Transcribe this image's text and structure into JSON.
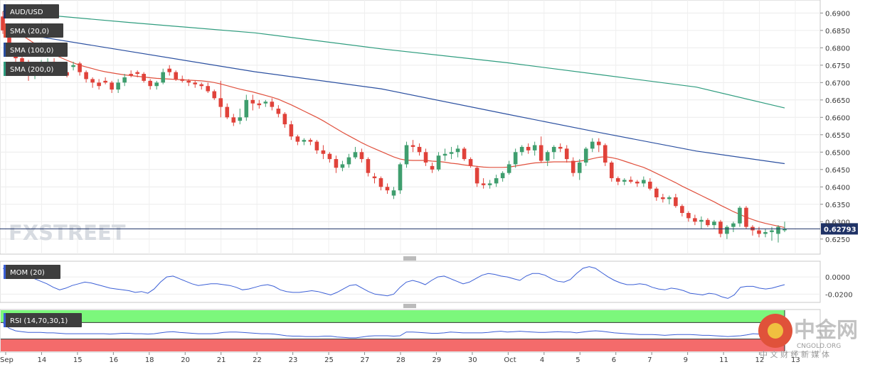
{
  "chart_data": {
    "type": "candlestick",
    "symbol": "AUD/USD",
    "colors": {
      "bull": "#3f9e6e",
      "bear": "#e0423a",
      "sma20": "#e0503d",
      "sma100": "#2a4fa0",
      "sma200": "#2e9c7e",
      "mom": "#3b5fd6",
      "rsi": "#3b5fd6",
      "overbought": "#7cf77c",
      "oversold": "#f46b6b",
      "price_line": "#1f3266"
    },
    "price_axis": {
      "ylim": [
        0.6225,
        0.6915
      ],
      "ticks": [
        "0.6900",
        "0.6850",
        "0.6800",
        "0.6750",
        "0.6700",
        "0.6650",
        "0.6600",
        "0.6550",
        "0.6500",
        "0.6450",
        "0.6400",
        "0.6350",
        "0.6300",
        "0.6250"
      ]
    },
    "last_price": "0.62793",
    "date_labels": [
      "Sep",
      "14",
      "15",
      "16",
      "18",
      "20",
      "21",
      "22",
      "23",
      "25",
      "27",
      "28",
      "29",
      "30",
      "Oct",
      "4",
      "5",
      "6",
      "7",
      "9",
      "11",
      "12",
      "13"
    ],
    "candles": [
      [
        0.689,
        0.6905,
        0.684,
        0.685
      ],
      [
        0.685,
        0.686,
        0.6785,
        0.6795
      ],
      [
        0.6795,
        0.6815,
        0.676,
        0.677
      ],
      [
        0.677,
        0.679,
        0.674,
        0.675
      ],
      [
        0.675,
        0.6765,
        0.6705,
        0.672
      ],
      [
        0.672,
        0.6745,
        0.671,
        0.6735
      ],
      [
        0.6735,
        0.6765,
        0.6725,
        0.6755
      ],
      [
        0.6755,
        0.677,
        0.6745,
        0.676
      ],
      [
        0.676,
        0.677,
        0.672,
        0.674
      ],
      [
        0.674,
        0.6745,
        0.6725,
        0.673
      ],
      [
        0.673,
        0.674,
        0.6715,
        0.672
      ],
      [
        0.6745,
        0.676,
        0.6735,
        0.675
      ],
      [
        0.6755,
        0.676,
        0.672,
        0.673
      ],
      [
        0.673,
        0.6735,
        0.67,
        0.671
      ],
      [
        0.671,
        0.6715,
        0.6685,
        0.67
      ],
      [
        0.67,
        0.671,
        0.668,
        0.669
      ],
      [
        0.6705,
        0.6715,
        0.6695,
        0.67
      ],
      [
        0.67,
        0.6705,
        0.667,
        0.668
      ],
      [
        0.668,
        0.671,
        0.667,
        0.67
      ],
      [
        0.67,
        0.6725,
        0.669,
        0.6715
      ],
      [
        0.6725,
        0.6735,
        0.6715,
        0.672
      ],
      [
        0.673,
        0.6735,
        0.6715,
        0.6725
      ],
      [
        0.6725,
        0.673,
        0.67,
        0.6705
      ],
      [
        0.6705,
        0.671,
        0.668,
        0.669
      ],
      [
        0.669,
        0.6705,
        0.668,
        0.67
      ],
      [
        0.67,
        0.674,
        0.6695,
        0.673
      ],
      [
        0.674,
        0.675,
        0.672,
        0.673
      ],
      [
        0.673,
        0.6735,
        0.6705,
        0.671
      ],
      [
        0.671,
        0.672,
        0.67,
        0.6705
      ],
      [
        0.6705,
        0.671,
        0.669,
        0.67
      ],
      [
        0.67,
        0.6705,
        0.6685,
        0.6695
      ],
      [
        0.6695,
        0.67,
        0.668,
        0.669
      ],
      [
        0.669,
        0.67,
        0.667,
        0.6675
      ],
      [
        0.6675,
        0.668,
        0.665,
        0.6655
      ],
      [
        0.6655,
        0.6705,
        0.66,
        0.663
      ],
      [
        0.663,
        0.664,
        0.6595,
        0.66
      ],
      [
        0.66,
        0.661,
        0.6575,
        0.6585
      ],
      [
        0.659,
        0.6625,
        0.658,
        0.66
      ],
      [
        0.66,
        0.6665,
        0.659,
        0.665
      ],
      [
        0.665,
        0.6665,
        0.662,
        0.664
      ],
      [
        0.664,
        0.665,
        0.6625,
        0.6635
      ],
      [
        0.664,
        0.665,
        0.663,
        0.6645
      ],
      [
        0.6645,
        0.6655,
        0.662,
        0.663
      ],
      [
        0.6625,
        0.6635,
        0.66,
        0.661
      ],
      [
        0.661,
        0.6615,
        0.657,
        0.658
      ],
      [
        0.658,
        0.659,
        0.6535,
        0.6545
      ],
      [
        0.6545,
        0.655,
        0.652,
        0.653
      ],
      [
        0.653,
        0.654,
        0.652,
        0.6535
      ],
      [
        0.6535,
        0.654,
        0.652,
        0.653
      ],
      [
        0.653,
        0.6535,
        0.6495,
        0.6505
      ],
      [
        0.6505,
        0.652,
        0.648,
        0.6495
      ],
      [
        0.6495,
        0.65,
        0.647,
        0.648
      ],
      [
        0.648,
        0.649,
        0.644,
        0.6455
      ],
      [
        0.6455,
        0.6475,
        0.6445,
        0.6465
      ],
      [
        0.6465,
        0.6495,
        0.6455,
        0.6485
      ],
      [
        0.6485,
        0.6515,
        0.648,
        0.65
      ],
      [
        0.65,
        0.651,
        0.647,
        0.648
      ],
      [
        0.648,
        0.6485,
        0.643,
        0.644
      ],
      [
        0.643,
        0.644,
        0.641,
        0.6425
      ],
      [
        0.6425,
        0.643,
        0.639,
        0.64
      ],
      [
        0.64,
        0.641,
        0.638,
        0.639
      ],
      [
        0.6375,
        0.64,
        0.6365,
        0.639
      ],
      [
        0.639,
        0.647,
        0.638,
        0.6465
      ],
      [
        0.6465,
        0.653,
        0.6455,
        0.652
      ],
      [
        0.652,
        0.6535,
        0.65,
        0.6515
      ],
      [
        0.6515,
        0.6525,
        0.649,
        0.65
      ],
      [
        0.65,
        0.651,
        0.646,
        0.647
      ],
      [
        0.646,
        0.647,
        0.644,
        0.645
      ],
      [
        0.645,
        0.65,
        0.6445,
        0.649
      ],
      [
        0.649,
        0.651,
        0.6475,
        0.6495
      ],
      [
        0.6495,
        0.6515,
        0.648,
        0.65
      ],
      [
        0.65,
        0.652,
        0.6485,
        0.651
      ],
      [
        0.651,
        0.6515,
        0.6475,
        0.648
      ],
      [
        0.648,
        0.6485,
        0.6455,
        0.646
      ],
      [
        0.6455,
        0.646,
        0.64,
        0.641
      ],
      [
        0.641,
        0.6425,
        0.6395,
        0.6405
      ],
      [
        0.6405,
        0.642,
        0.6395,
        0.641
      ],
      [
        0.641,
        0.6435,
        0.64,
        0.6425
      ],
      [
        0.6425,
        0.6445,
        0.6415,
        0.644
      ],
      [
        0.644,
        0.6475,
        0.6435,
        0.6465
      ],
      [
        0.6465,
        0.651,
        0.6455,
        0.65
      ],
      [
        0.65,
        0.652,
        0.649,
        0.6515
      ],
      [
        0.6515,
        0.6525,
        0.6495,
        0.6505
      ],
      [
        0.6505,
        0.653,
        0.649,
        0.652
      ],
      [
        0.652,
        0.6545,
        0.647,
        0.6475
      ],
      [
        0.6475,
        0.6505,
        0.646,
        0.65
      ],
      [
        0.65,
        0.652,
        0.648,
        0.6515
      ],
      [
        0.6515,
        0.6525,
        0.65,
        0.651
      ],
      [
        0.651,
        0.652,
        0.647,
        0.648
      ],
      [
        0.6475,
        0.6485,
        0.643,
        0.644
      ],
      [
        0.644,
        0.648,
        0.642,
        0.647
      ],
      [
        0.647,
        0.6515,
        0.646,
        0.651
      ],
      [
        0.651,
        0.654,
        0.65,
        0.653
      ],
      [
        0.653,
        0.654,
        0.65,
        0.652
      ],
      [
        0.652,
        0.6525,
        0.646,
        0.647
      ],
      [
        0.647,
        0.6475,
        0.6415,
        0.6425
      ],
      [
        0.6425,
        0.643,
        0.6405,
        0.6415
      ],
      [
        0.6415,
        0.6425,
        0.6405,
        0.642
      ],
      [
        0.642,
        0.643,
        0.641,
        0.6415
      ],
      [
        0.6415,
        0.642,
        0.64,
        0.641
      ],
      [
        0.641,
        0.643,
        0.64,
        0.642
      ],
      [
        0.6415,
        0.6425,
        0.639,
        0.6395
      ],
      [
        0.6395,
        0.64,
        0.636,
        0.637
      ],
      [
        0.637,
        0.638,
        0.6355,
        0.6365
      ],
      [
        0.6365,
        0.6375,
        0.635,
        0.637
      ],
      [
        0.637,
        0.638,
        0.634,
        0.6345
      ],
      [
        0.6345,
        0.635,
        0.6315,
        0.6325
      ],
      [
        0.6325,
        0.633,
        0.63,
        0.631
      ],
      [
        0.631,
        0.632,
        0.629,
        0.63
      ],
      [
        0.63,
        0.6315,
        0.628,
        0.6305
      ],
      [
        0.6305,
        0.631,
        0.6285,
        0.629
      ],
      [
        0.629,
        0.6305,
        0.628,
        0.63
      ],
      [
        0.63,
        0.6305,
        0.6255,
        0.6265
      ],
      [
        0.6265,
        0.629,
        0.625,
        0.6285
      ],
      [
        0.6285,
        0.63,
        0.627,
        0.6295
      ],
      [
        0.6295,
        0.6345,
        0.6285,
        0.634
      ],
      [
        0.634,
        0.6345,
        0.628,
        0.6285
      ],
      [
        0.6285,
        0.629,
        0.626,
        0.6275
      ],
      [
        0.6275,
        0.6285,
        0.6255,
        0.6265
      ],
      [
        0.6265,
        0.628,
        0.6255,
        0.627
      ],
      [
        0.627,
        0.6285,
        0.6245,
        0.6275
      ],
      [
        0.6265,
        0.629,
        0.624,
        0.6285
      ],
      [
        0.6275,
        0.63,
        0.627,
        0.6279
      ]
    ],
    "sma20": [
      0.6862,
      0.6855,
      0.6846,
      0.6836,
      0.6824,
      0.6812,
      0.68,
      0.679,
      0.678,
      0.6772,
      0.6764,
      0.6757,
      0.675,
      0.6745,
      0.674,
      0.6735,
      0.6731,
      0.6728,
      0.6725,
      0.6722,
      0.672,
      0.6718,
      0.6716,
      0.6714,
      0.6712,
      0.6711,
      0.671,
      0.6709,
      0.6708,
      0.6707,
      0.6706,
      0.6705,
      0.6703,
      0.67,
      0.6696,
      0.6691,
      0.6686,
      0.6681,
      0.6677,
      0.6673,
      0.6668,
      0.6663,
      0.6658,
      0.6652,
      0.6644,
      0.6636,
      0.6627,
      0.6618,
      0.6609,
      0.66,
      0.659,
      0.6579,
      0.6568,
      0.6557,
      0.6547,
      0.6537,
      0.6527,
      0.6518,
      0.651,
      0.6502,
      0.6494,
      0.6486,
      0.648,
      0.6477,
      0.6476,
      0.6476,
      0.6476,
      0.6474,
      0.6473,
      0.6471,
      0.6468,
      0.6466,
      0.6463,
      0.6461,
      0.6459,
      0.6457,
      0.6456,
      0.6456,
      0.6456,
      0.6457,
      0.646,
      0.6463,
      0.6466,
      0.6469,
      0.647,
      0.6471,
      0.6472,
      0.6472,
      0.6472,
      0.6472,
      0.6474,
      0.6477,
      0.6481,
      0.6485,
      0.6487,
      0.6484,
      0.648,
      0.6474,
      0.6468,
      0.6462,
      0.6456,
      0.6448,
      0.6439,
      0.643,
      0.6421,
      0.6412,
      0.6402,
      0.6393,
      0.6384,
      0.6375,
      0.6366,
      0.6357,
      0.6347,
      0.6338,
      0.6329,
      0.6321,
      0.6313,
      0.6306,
      0.63,
      0.6295,
      0.6291,
      0.6287,
      0.6283
    ],
    "sma100": [
      0.6843,
      0.6731,
      0.6682,
      0.6609,
      0.6555,
      0.6503,
      0.6467
    ],
    "sma100_x": [
      2,
      40,
      60,
      80,
      95,
      110,
      124
    ],
    "sma200": [
      0.6905,
      0.6873,
      0.6843,
      0.6797,
      0.6757,
      0.6722,
      0.6687,
      0.6627
    ],
    "sma200_x": [
      0,
      20,
      40,
      60,
      80,
      95,
      110,
      124
    ],
    "mom": [
      0.01,
      0.008,
      0.005,
      0.003,
      0.001,
      -0.002,
      -0.005,
      -0.008,
      -0.012,
      -0.015,
      -0.013,
      -0.01,
      -0.008,
      -0.006,
      -0.007,
      -0.009,
      -0.011,
      -0.013,
      -0.014,
      -0.015,
      -0.016,
      -0.018,
      -0.017,
      -0.019,
      -0.014,
      -0.006,
      0.0,
      0.001,
      -0.002,
      -0.005,
      -0.008,
      -0.01,
      -0.009,
      -0.008,
      -0.008,
      -0.009,
      -0.01,
      -0.012,
      -0.015,
      -0.014,
      -0.012,
      -0.01,
      -0.009,
      -0.011,
      -0.015,
      -0.017,
      -0.018,
      -0.018,
      -0.017,
      -0.016,
      -0.017,
      -0.019,
      -0.021,
      -0.018,
      -0.014,
      -0.01,
      -0.009,
      -0.013,
      -0.017,
      -0.02,
      -0.021,
      -0.022,
      -0.02,
      -0.012,
      -0.006,
      -0.004,
      -0.006,
      -0.009,
      -0.004,
      0.0,
      0.001,
      -0.002,
      -0.005,
      -0.008,
      -0.006,
      -0.002,
      0.002,
      0.004,
      0.003,
      0.001,
      0.0,
      -0.002,
      -0.004,
      0.001,
      0.004,
      0.004,
      0.002,
      -0.002,
      -0.005,
      -0.006,
      -0.003,
      0.004,
      0.01,
      0.012,
      0.01,
      0.005,
      0.0,
      -0.004,
      -0.007,
      -0.009,
      -0.009,
      -0.008,
      -0.009,
      -0.012,
      -0.014,
      -0.015,
      -0.013,
      -0.014,
      -0.016,
      -0.019,
      -0.02,
      -0.021,
      -0.019,
      -0.02,
      -0.023,
      -0.025,
      -0.021,
      -0.012,
      -0.011,
      -0.011,
      -0.013,
      -0.014,
      -0.013,
      -0.011,
      -0.009
    ],
    "mom_axis": {
      "ylim": [
        -0.028,
        0.015
      ],
      "ticks": [
        "0.0000",
        "-0.0200"
      ],
      "tick_values": [
        0.0,
        -0.02
      ]
    },
    "rsi": [
      70,
      56,
      50,
      48,
      46,
      46,
      46,
      45,
      45,
      44,
      43,
      43,
      43,
      43,
      43,
      43,
      43,
      42,
      43,
      44,
      44,
      43,
      43,
      42,
      43,
      45,
      47,
      48,
      46,
      45,
      44,
      43,
      43,
      43,
      44,
      46,
      47,
      47,
      46,
      45,
      44,
      43,
      43,
      42,
      40,
      38,
      37,
      37,
      36,
      36,
      36,
      37,
      37,
      35,
      34,
      33,
      33,
      35,
      37,
      38,
      38,
      38,
      37,
      38,
      47,
      47,
      46,
      45,
      44,
      44,
      45,
      47,
      46,
      45,
      45,
      45,
      45,
      46,
      48,
      49,
      47,
      48,
      49,
      48,
      47,
      46,
      46,
      47,
      48,
      47,
      47,
      45,
      47,
      49,
      50,
      49,
      47,
      45,
      44,
      43,
      42,
      41,
      41,
      41,
      40,
      39,
      40,
      41,
      41,
      41,
      40,
      39,
      39,
      38,
      37,
      36,
      37,
      38,
      40,
      43,
      42,
      40,
      40,
      40,
      41
    ],
    "rsi_axis": {
      "ylim": [
        0,
        100
      ],
      "overbought": 70,
      "oversold": 30
    }
  },
  "legends": {
    "symbol": "AUD/USD",
    "sma20": "SMA (20,0)",
    "sma100": "SMA (100,0)",
    "sma200": "SMA (200,0)",
    "mom": "MOM (20)",
    "rsi": "RSI (14,70,30,1)"
  },
  "watermark": {
    "brand": "FXSTREET",
    "cn_title": "中金网",
    "cn_domain": "CNGOLD.ORG",
    "cn_subtitle": "中 文 财 经 新 媒 体"
  }
}
